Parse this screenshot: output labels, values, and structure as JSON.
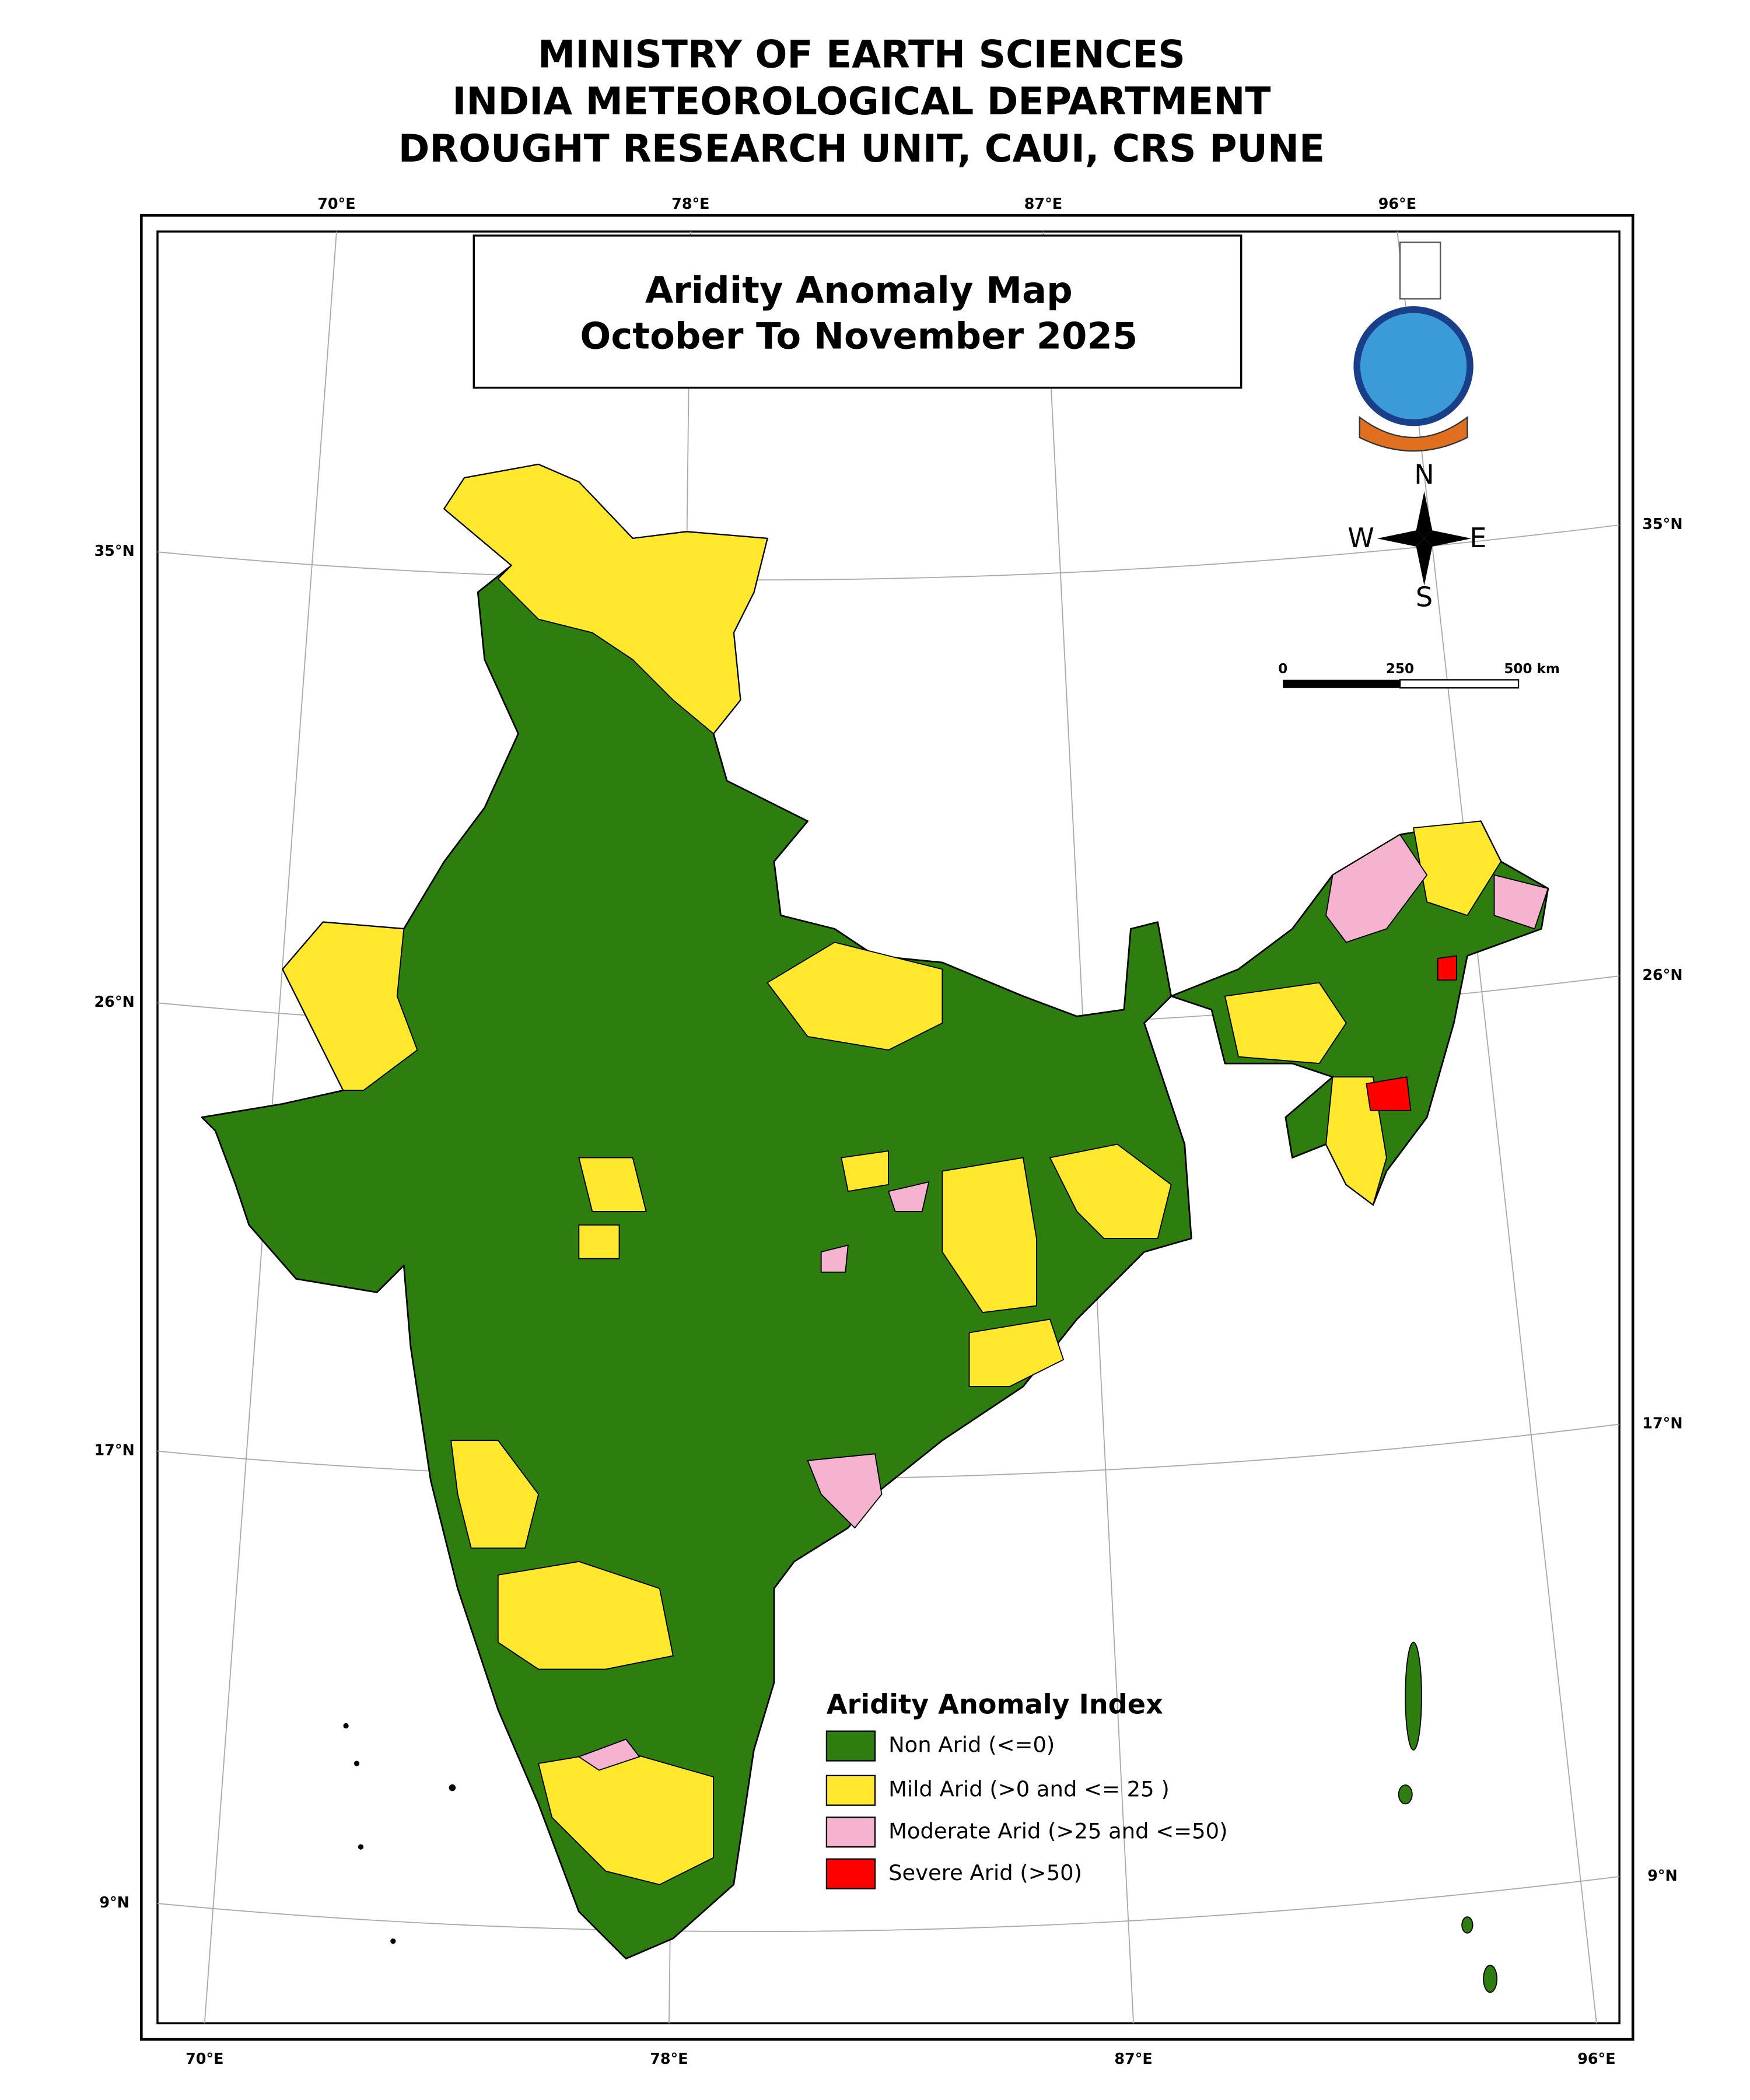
{
  "header": {
    "lines": [
      "MINISTRY OF EARTH SCIENCES",
      "INDIA METEOROLOGICAL DEPARTMENT",
      "DROUGHT RESEARCH UNIT, CAUI, CRS PUNE"
    ]
  },
  "map": {
    "title": [
      "Aridity Anomaly Map",
      "October To November 2025"
    ],
    "top_longitudes": [
      "70°E",
      "78°E",
      "87°E",
      "96°E"
    ],
    "bottom_longitudes": [
      "70°E",
      "78°E",
      "87°E",
      "96°E"
    ],
    "left_latitudes": [
      "35°N",
      "26°N",
      "17°N",
      "9°N"
    ],
    "right_latitudes": [
      "35°N",
      "26°N",
      "17°N",
      "9°N"
    ],
    "compass": {
      "north": "N",
      "east": "E",
      "south": "S",
      "west": "W"
    },
    "scale_bar": [
      "0",
      "250",
      "500 km"
    ],
    "legend": {
      "title": "Aridity Anomaly Index",
      "items": [
        {
          "label": "Non Arid (<=0)",
          "color": "#2e7d0f"
        },
        {
          "label": "Mild Arid (>0 and <= 25 )",
          "color": "#ffe82e"
        },
        {
          "label": "Moderate Arid (>25 and <=50)",
          "color": "#f5b3d0"
        },
        {
          "label": "Severe Arid (>50)",
          "color": "#ff0000"
        }
      ]
    }
  }
}
